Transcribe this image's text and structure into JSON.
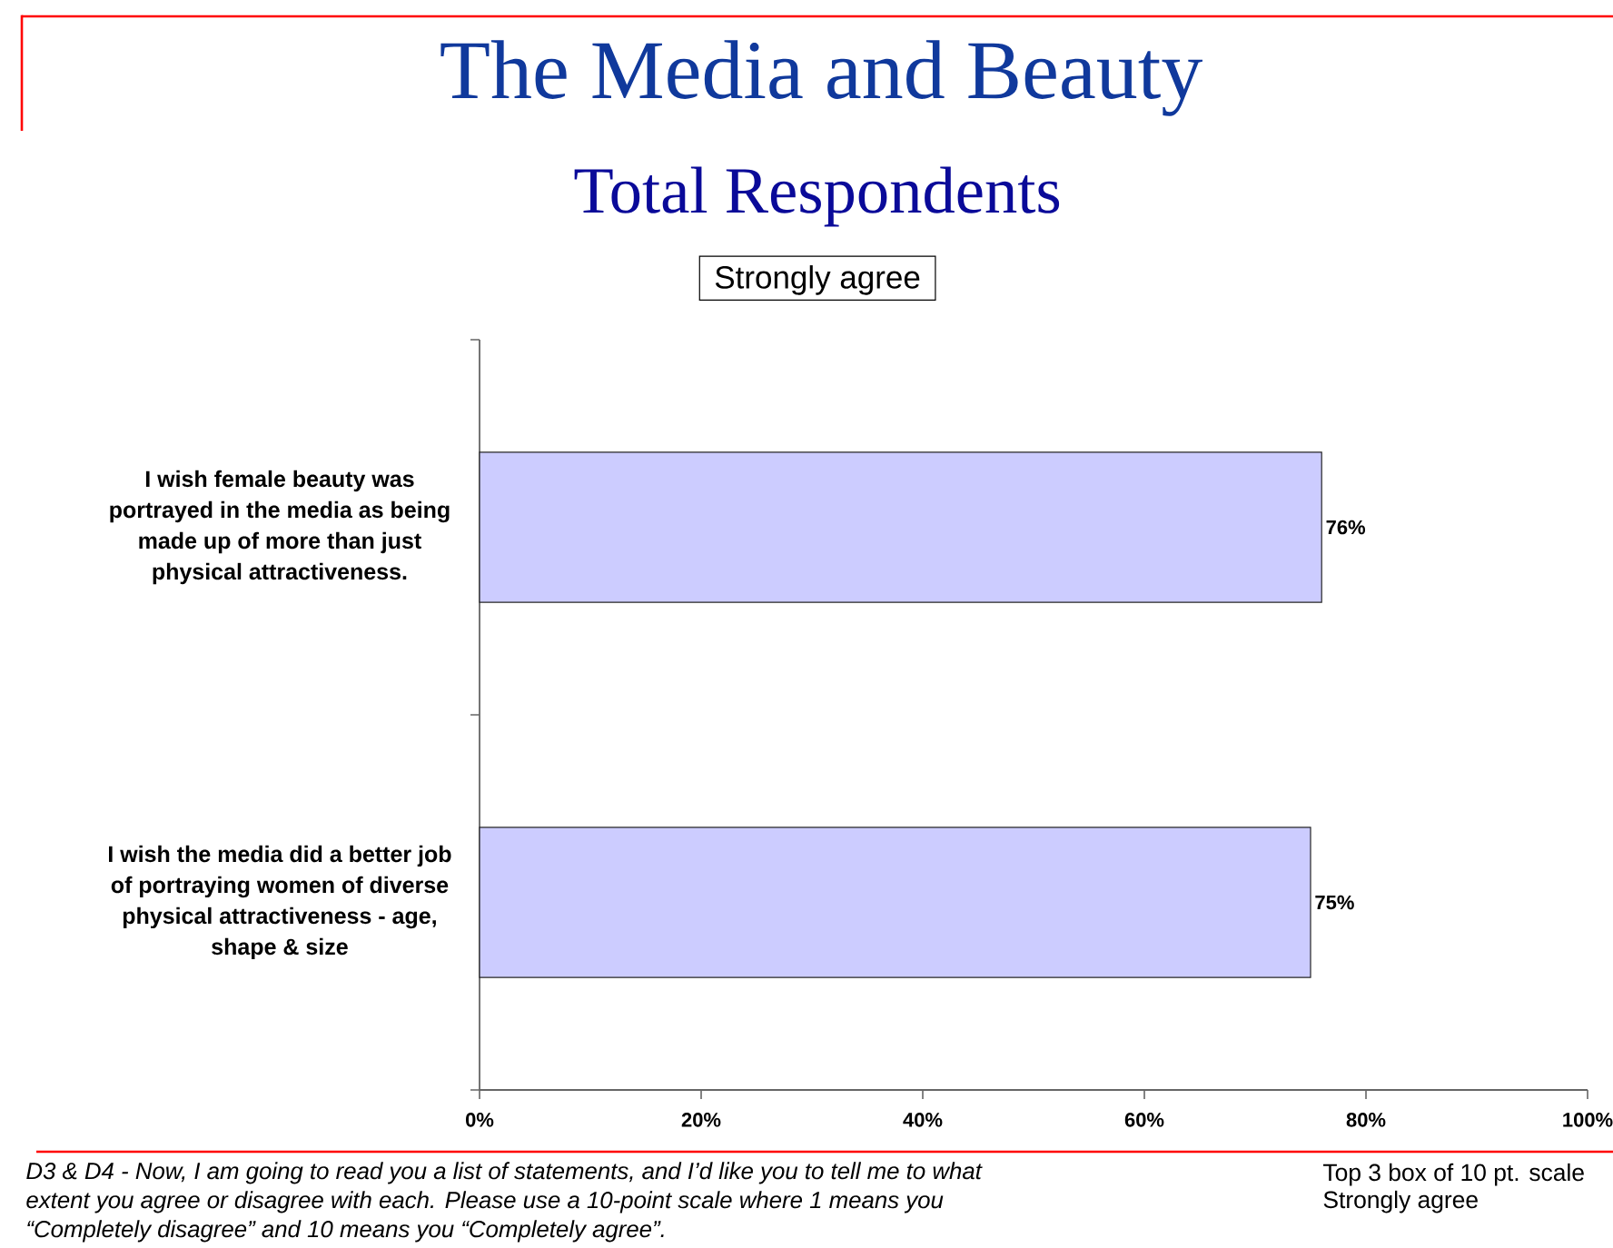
{
  "chart_data": {
    "type": "bar",
    "orientation": "horizontal",
    "title": "The Media and Beauty",
    "subtitle": "Total Respondents",
    "categories": [
      "I wish female beauty was portrayed in the media as being made up of more than just physical attractiveness.",
      "I wish the media did a better job of portraying women of diverse physical attractiveness - age, shape & size"
    ],
    "series": [
      {
        "name": "Strongly agree",
        "color": "#ccccff",
        "values": [
          76,
          75
        ],
        "value_labels": [
          "76%",
          "75%"
        ]
      }
    ],
    "xlim": [
      0,
      100
    ],
    "xticks": [
      {
        "value": 0,
        "label": "0%"
      },
      {
        "value": 20,
        "label": "20%"
      },
      {
        "value": 40,
        "label": "40%"
      },
      {
        "value": 60,
        "label": "60%"
      },
      {
        "value": 80,
        "label": "80%"
      },
      {
        "value": 100,
        "label": "100%"
      }
    ],
    "legend": "top",
    "annotations": [
      "D3 & D4 - Now, I am going to read you a list of statements, and I’d like you to tell me to what extent you agree or disagree with each.  Please use a 10-point scale where 1 means you “Completely disagree” and 10 means you “Completely agree”.",
      "Top 3 box of 10 pt. scale",
      "Strongly agree"
    ]
  }
}
